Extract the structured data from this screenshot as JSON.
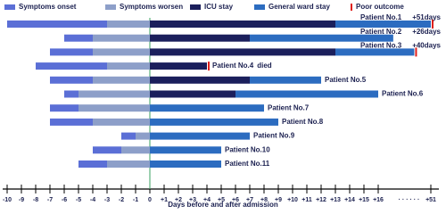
{
  "chart_data": {
    "type": "timeline",
    "x_label": "Days before and after admission",
    "categories": [
      "Patient No.1",
      "Patient No.2",
      "Patient No.3",
      "Patient No.4",
      "Patient No.5",
      "Patient No.6",
      "Patient No.7",
      "Patient No.8",
      "Patient No.9",
      "Patient No.10",
      "Patient No.11"
    ],
    "series": [
      {
        "name": "Symptoms onset",
        "color": "#5b6fd6",
        "values": [
          -10,
          -6,
          -7,
          -8,
          -7,
          -6,
          -7,
          -7,
          -2,
          -4,
          -5
        ]
      },
      {
        "name": "Symptoms worsen",
        "color": "#8d9fc9",
        "values": [
          -3,
          -4,
          -4,
          -3,
          -4,
          -5,
          -5,
          -4,
          -1,
          -2,
          -3
        ]
      },
      {
        "name": "ICU stay",
        "color": "#1b1f5c",
        "values": [
          13,
          7,
          13,
          4,
          7,
          6,
          null,
          null,
          null,
          null,
          null
        ]
      },
      {
        "name": "General ward  stay",
        "color": "#2c6cc0",
        "values": [
          51,
          26,
          40,
          null,
          12,
          16,
          8,
          9,
          7,
          5,
          5
        ]
      },
      {
        "name": "Poor outcome",
        "color": "#e0201c",
        "values": [
          51,
          null,
          40,
          4,
          null,
          null,
          null,
          null,
          null,
          null,
          null
        ]
      }
    ],
    "annotations": [
      "+51days",
      "+26days",
      "+40days",
      "died",
      null,
      null,
      null,
      null,
      null,
      null,
      null
    ],
    "xlim": [
      -10,
      51
    ],
    "axis_break": {
      "from": 16,
      "to": 51,
      "label": "· · · · · ·"
    },
    "xticks": [
      -10,
      -9,
      -8,
      -7,
      -6,
      -5,
      -4,
      -3,
      -2,
      -1,
      0,
      {
        "value": 1,
        "label": "+1"
      },
      {
        "value": 2,
        "label": "+2"
      },
      {
        "value": 3,
        "label": "+3"
      },
      {
        "value": 4,
        "label": "+4"
      },
      {
        "value": 5,
        "label": "+5"
      },
      {
        "value": 6,
        "label": "+6"
      },
      {
        "value": 7,
        "label": "+7"
      },
      {
        "value": 8,
        "label": "+8"
      },
      {
        "value": 9,
        "label": "+9"
      },
      {
        "value": 10,
        "label": "+10"
      },
      {
        "value": 11,
        "label": "+11"
      },
      {
        "value": 12,
        "label": "+12"
      },
      {
        "value": 13,
        "label": "+13"
      },
      {
        "value": 14,
        "label": "+14"
      },
      {
        "value": 15,
        "label": "+15"
      },
      {
        "value": 16,
        "label": "+16"
      },
      {
        "value": 51,
        "label": "+51"
      }
    ]
  }
}
